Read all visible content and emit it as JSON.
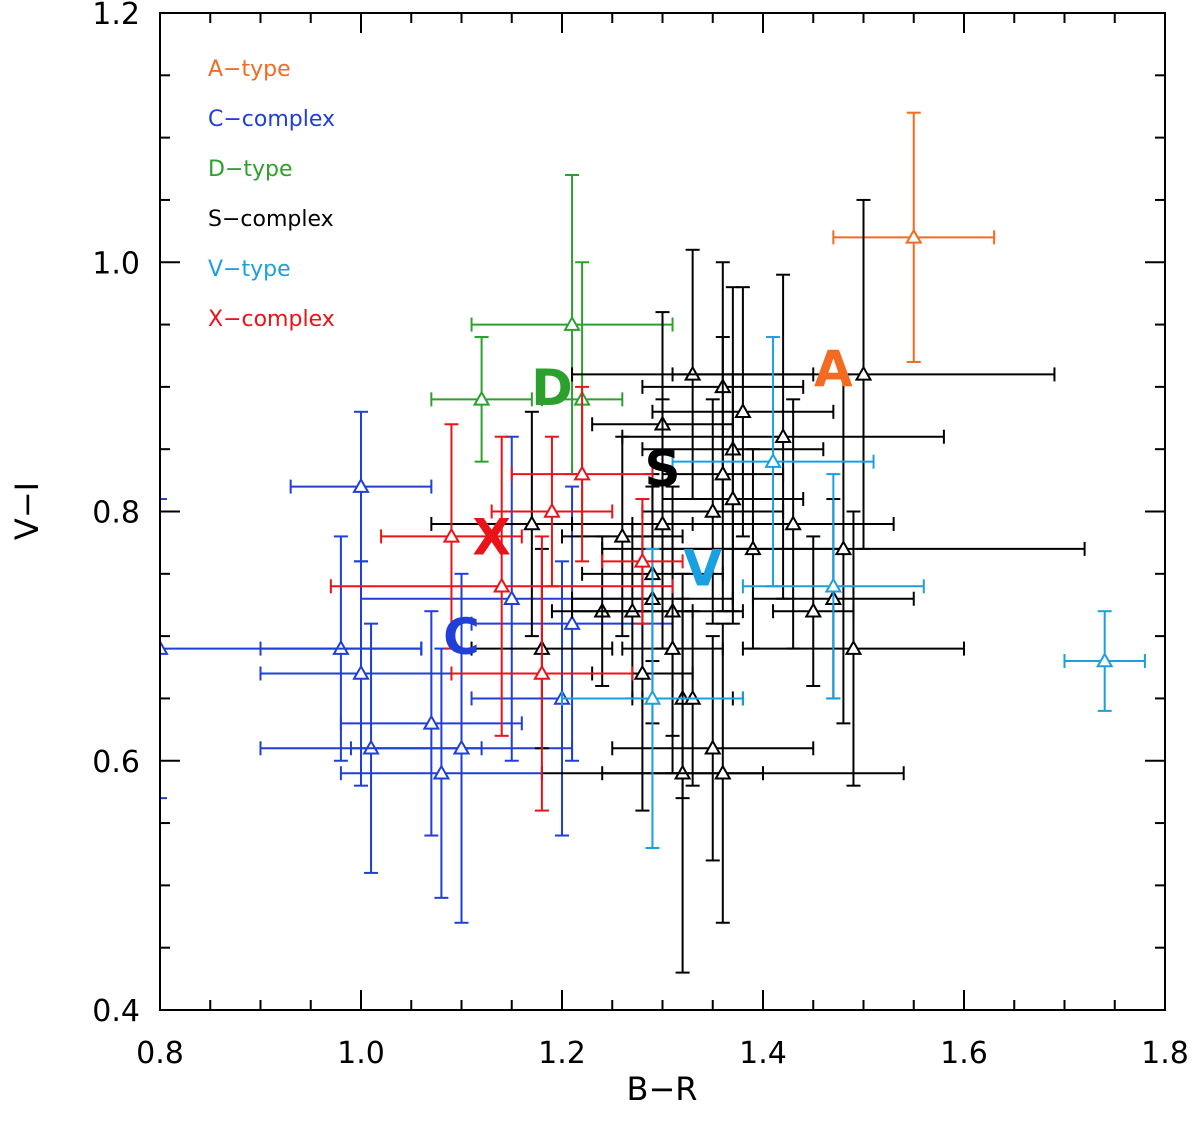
{
  "chart_data": {
    "type": "scatter",
    "title": "",
    "xlabel": "B−R",
    "ylabel": "V−I",
    "xlim": [
      0.8,
      1.8
    ],
    "ylim": [
      0.4,
      1.2
    ],
    "x_ticks": [
      "0.8",
      "1.0",
      "1.2",
      "1.4",
      "1.6",
      "1.8"
    ],
    "y_ticks": [
      "0.4",
      "0.6",
      "0.8",
      "1.0",
      "1.2"
    ],
    "marker": "open-triangle",
    "legend_position": "top-left",
    "series": [
      {
        "name": "A−type",
        "color": "#f26b21",
        "label": "A",
        "label_at": [
          1.47,
          0.915
        ],
        "points": [
          {
            "x": 1.55,
            "y": 1.02,
            "xerr": 0.08,
            "yerr": 0.1
          }
        ]
      },
      {
        "name": "C−complex",
        "color": "#1f3fd6",
        "label": "C",
        "label_at": [
          1.1,
          0.7
        ],
        "points": [
          {
            "x": 1.0,
            "y": 0.82,
            "xerr": 0.07,
            "yerr": 0.06
          },
          {
            "x": 0.98,
            "y": 0.69,
            "xerr": 0.08,
            "yerr": 0.09
          },
          {
            "x": 1.0,
            "y": 0.67,
            "xerr": 0.1,
            "yerr": 0.09
          },
          {
            "x": 1.01,
            "y": 0.61,
            "xerr": 0.11,
            "yerr": 0.1
          },
          {
            "x": 1.07,
            "y": 0.63,
            "xerr": 0.09,
            "yerr": 0.09
          },
          {
            "x": 1.08,
            "y": 0.59,
            "xerr": 0.1,
            "yerr": 0.1
          },
          {
            "x": 1.1,
            "y": 0.61,
            "xerr": 0.11,
            "yerr": 0.14
          },
          {
            "x": 0.8,
            "y": 0.69,
            "xerr": 0.26,
            "yerr": 0.12
          },
          {
            "x": 1.15,
            "y": 0.73,
            "xerr": 0.15,
            "yerr": 0.13
          },
          {
            "x": 1.21,
            "y": 0.71,
            "xerr": 0.1,
            "yerr": 0.11
          },
          {
            "x": 1.2,
            "y": 0.65,
            "xerr": 0.09,
            "yerr": 0.11
          }
        ]
      },
      {
        "name": "D−type",
        "color": "#2ca02c",
        "label": "D",
        "label_at": [
          1.19,
          0.9
        ],
        "points": [
          {
            "x": 1.21,
            "y": 0.95,
            "xerr": 0.1,
            "yerr": 0.12
          },
          {
            "x": 1.12,
            "y": 0.89,
            "xerr": 0.05,
            "yerr": 0.05
          },
          {
            "x": 1.22,
            "y": 0.89,
            "xerr": 0.04,
            "yerr": 0.11
          }
        ]
      },
      {
        "name": "S−complex",
        "color": "#000000",
        "label": "S",
        "label_at": [
          1.3,
          0.835
        ],
        "points": [
          {
            "x": 1.33,
            "y": 0.91,
            "xerr": 0.12,
            "yerr": 0.1
          },
          {
            "x": 1.36,
            "y": 0.9,
            "xerr": 0.08,
            "yerr": 0.1
          },
          {
            "x": 1.5,
            "y": 0.91,
            "xerr": 0.19,
            "yerr": 0.14
          },
          {
            "x": 1.38,
            "y": 0.88,
            "xerr": 0.09,
            "yerr": 0.1
          },
          {
            "x": 1.3,
            "y": 0.87,
            "xerr": 0.07,
            "yerr": 0.09
          },
          {
            "x": 1.42,
            "y": 0.86,
            "xerr": 0.16,
            "yerr": 0.13
          },
          {
            "x": 1.37,
            "y": 0.85,
            "xerr": 0.09,
            "yerr": 0.13
          },
          {
            "x": 1.36,
            "y": 0.83,
            "xerr": 0.06,
            "yerr": 0.11
          },
          {
            "x": 1.37,
            "y": 0.81,
            "xerr": 0.07,
            "yerr": 0.1
          },
          {
            "x": 1.35,
            "y": 0.8,
            "xerr": 0.07,
            "yerr": 0.09
          },
          {
            "x": 1.3,
            "y": 0.79,
            "xerr": 0.09,
            "yerr": 0.1
          },
          {
            "x": 1.43,
            "y": 0.79,
            "xerr": 0.1,
            "yerr": 0.1
          },
          {
            "x": 1.17,
            "y": 0.79,
            "xerr": 0.1,
            "yerr": 0.09
          },
          {
            "x": 1.26,
            "y": 0.78,
            "xerr": 0.06,
            "yerr": 0.08
          },
          {
            "x": 1.39,
            "y": 0.77,
            "xerr": 0.09,
            "yerr": 0.08
          },
          {
            "x": 1.48,
            "y": 0.77,
            "xerr": 0.24,
            "yerr": 0.14
          },
          {
            "x": 1.29,
            "y": 0.75,
            "xerr": 0.07,
            "yerr": 0.07
          },
          {
            "x": 1.47,
            "y": 0.73,
            "xerr": 0.08,
            "yerr": 0.08
          },
          {
            "x": 1.29,
            "y": 0.73,
            "xerr": 0.08,
            "yerr": 0.1
          },
          {
            "x": 1.24,
            "y": 0.72,
            "xerr": 0.05,
            "yerr": 0.06
          },
          {
            "x": 1.27,
            "y": 0.72,
            "xerr": 0.06,
            "yerr": 0.07
          },
          {
            "x": 1.45,
            "y": 0.72,
            "xerr": 0.04,
            "yerr": 0.06
          },
          {
            "x": 1.31,
            "y": 0.72,
            "xerr": 0.07,
            "yerr": 0.1
          },
          {
            "x": 1.49,
            "y": 0.69,
            "xerr": 0.11,
            "yerr": 0.11
          },
          {
            "x": 1.18,
            "y": 0.69,
            "xerr": 0.07,
            "yerr": 0.08
          },
          {
            "x": 1.31,
            "y": 0.69,
            "xerr": 0.05,
            "yerr": 0.1
          },
          {
            "x": 1.28,
            "y": 0.67,
            "xerr": 0.05,
            "yerr": 0.11
          },
          {
            "x": 1.32,
            "y": 0.65,
            "xerr": 0.05,
            "yerr": 0.08
          },
          {
            "x": 1.33,
            "y": 0.65,
            "xerr": 0.05,
            "yerr": 0.07
          },
          {
            "x": 1.35,
            "y": 0.61,
            "xerr": 0.1,
            "yerr": 0.09
          },
          {
            "x": 1.32,
            "y": 0.59,
            "xerr": 0.08,
            "yerr": 0.16
          },
          {
            "x": 1.36,
            "y": 0.59,
            "xerr": 0.18,
            "yerr": 0.12
          }
        ]
      },
      {
        "name": "V−type",
        "color": "#1aa0e0",
        "label": "V",
        "label_at": [
          1.34,
          0.755
        ],
        "points": [
          {
            "x": 1.41,
            "y": 0.84,
            "xerr": 0.1,
            "yerr": 0.1
          },
          {
            "x": 1.47,
            "y": 0.74,
            "xerr": 0.09,
            "yerr": 0.09
          },
          {
            "x": 1.29,
            "y": 0.65,
            "xerr": 0.09,
            "yerr": 0.12
          },
          {
            "x": 1.74,
            "y": 0.68,
            "xerr": 0.04,
            "yerr": 0.04
          }
        ]
      },
      {
        "name": "X−complex",
        "color": "#e8141a",
        "label": "X",
        "label_at": [
          1.13,
          0.78
        ],
        "points": [
          {
            "x": 1.22,
            "y": 0.83,
            "xerr": 0.07,
            "yerr": 0.07
          },
          {
            "x": 1.19,
            "y": 0.8,
            "xerr": 0.06,
            "yerr": 0.06
          },
          {
            "x": 1.09,
            "y": 0.78,
            "xerr": 0.07,
            "yerr": 0.09
          },
          {
            "x": 1.28,
            "y": 0.76,
            "xerr": 0.04,
            "yerr": 0.05
          },
          {
            "x": 1.14,
            "y": 0.74,
            "xerr": 0.17,
            "yerr": 0.12
          },
          {
            "x": 1.18,
            "y": 0.67,
            "xerr": 0.09,
            "yerr": 0.11
          }
        ]
      }
    ]
  }
}
